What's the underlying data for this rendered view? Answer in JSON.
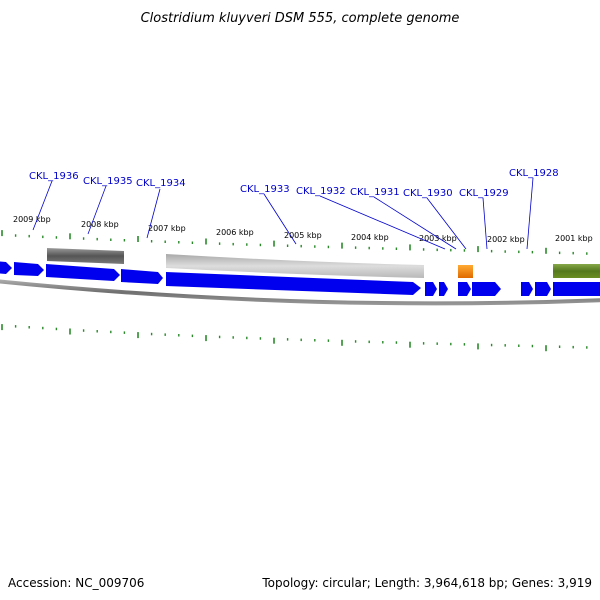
{
  "title": "Clostridium kluyveri DSM 555, complete genome",
  "footer": {
    "accession": "Accession: NC_009706",
    "summary": "Topology: circular; Length: 3,964,618 bp; Genes: 3,919"
  },
  "colors": {
    "forward_gene": "#0000ee",
    "tick": "#2a8a2a",
    "gene_label": "#0000cc",
    "backbone": "#808080",
    "feature_dark_gray": "#666666",
    "feature_light_gray": "#bbbbbb",
    "feature_orange": "#f07c00",
    "feature_olive": "#6b8e23"
  },
  "kbp_labels": [
    "2009 kbp",
    "2008 kbp",
    "2007 kbp",
    "2006 kbp",
    "2005 kbp",
    "2004 kbp",
    "2003 kbp",
    "2002 kbp",
    "2001 kbp"
  ],
  "gene_labels": [
    "CKL_1936",
    "CKL_1935",
    "CKL_1934",
    "CKL_1933",
    "CKL_1932",
    "CKL_1931",
    "CKL_1930",
    "CKL_1929",
    "CKL_1928"
  ]
}
